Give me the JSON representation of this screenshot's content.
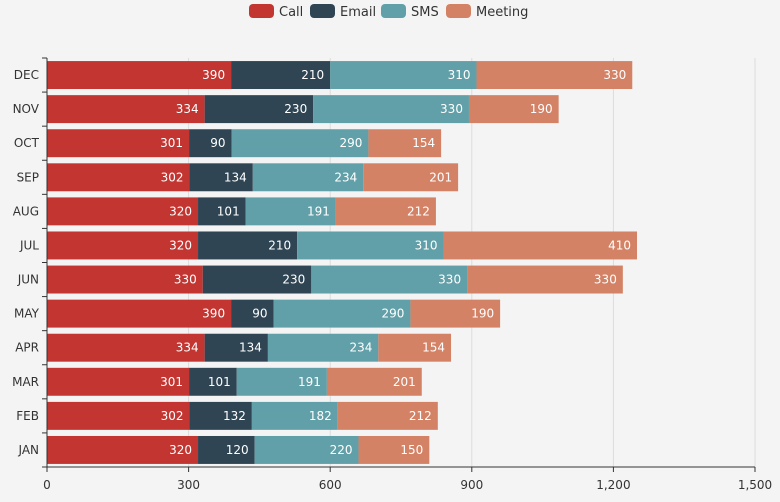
{
  "chart_data": {
    "type": "bar",
    "orientation": "horizontal",
    "stacked": true,
    "categories": [
      "JAN",
      "FEB",
      "MAR",
      "APR",
      "MAY",
      "JUN",
      "JUL",
      "AUG",
      "SEP",
      "OCT",
      "NOV",
      "DEC"
    ],
    "series": [
      {
        "name": "Call",
        "color": "#c23531",
        "values": [
          320,
          302,
          301,
          334,
          390,
          330,
          320,
          320,
          302,
          301,
          334,
          390
        ]
      },
      {
        "name": "Email",
        "color": "#2f4554",
        "values": [
          120,
          132,
          101,
          134,
          90,
          230,
          210,
          101,
          134,
          90,
          230,
          210
        ]
      },
      {
        "name": "SMS",
        "color": "#61a0a8",
        "values": [
          220,
          182,
          191,
          234,
          290,
          330,
          310,
          191,
          234,
          290,
          330,
          310
        ]
      },
      {
        "name": "Meeting",
        "color": "#d48265",
        "values": [
          150,
          212,
          201,
          154,
          190,
          330,
          410,
          212,
          201,
          154,
          190,
          330
        ]
      }
    ],
    "xlim": [
      0,
      1500
    ],
    "xticks": [
      0,
      300,
      600,
      900,
      1200,
      1500
    ],
    "xtick_labels": [
      "0",
      "300",
      "600",
      "900",
      "1,200",
      "1,500"
    ],
    "grid": true,
    "legend_position": "top-center",
    "data_labels": true
  }
}
